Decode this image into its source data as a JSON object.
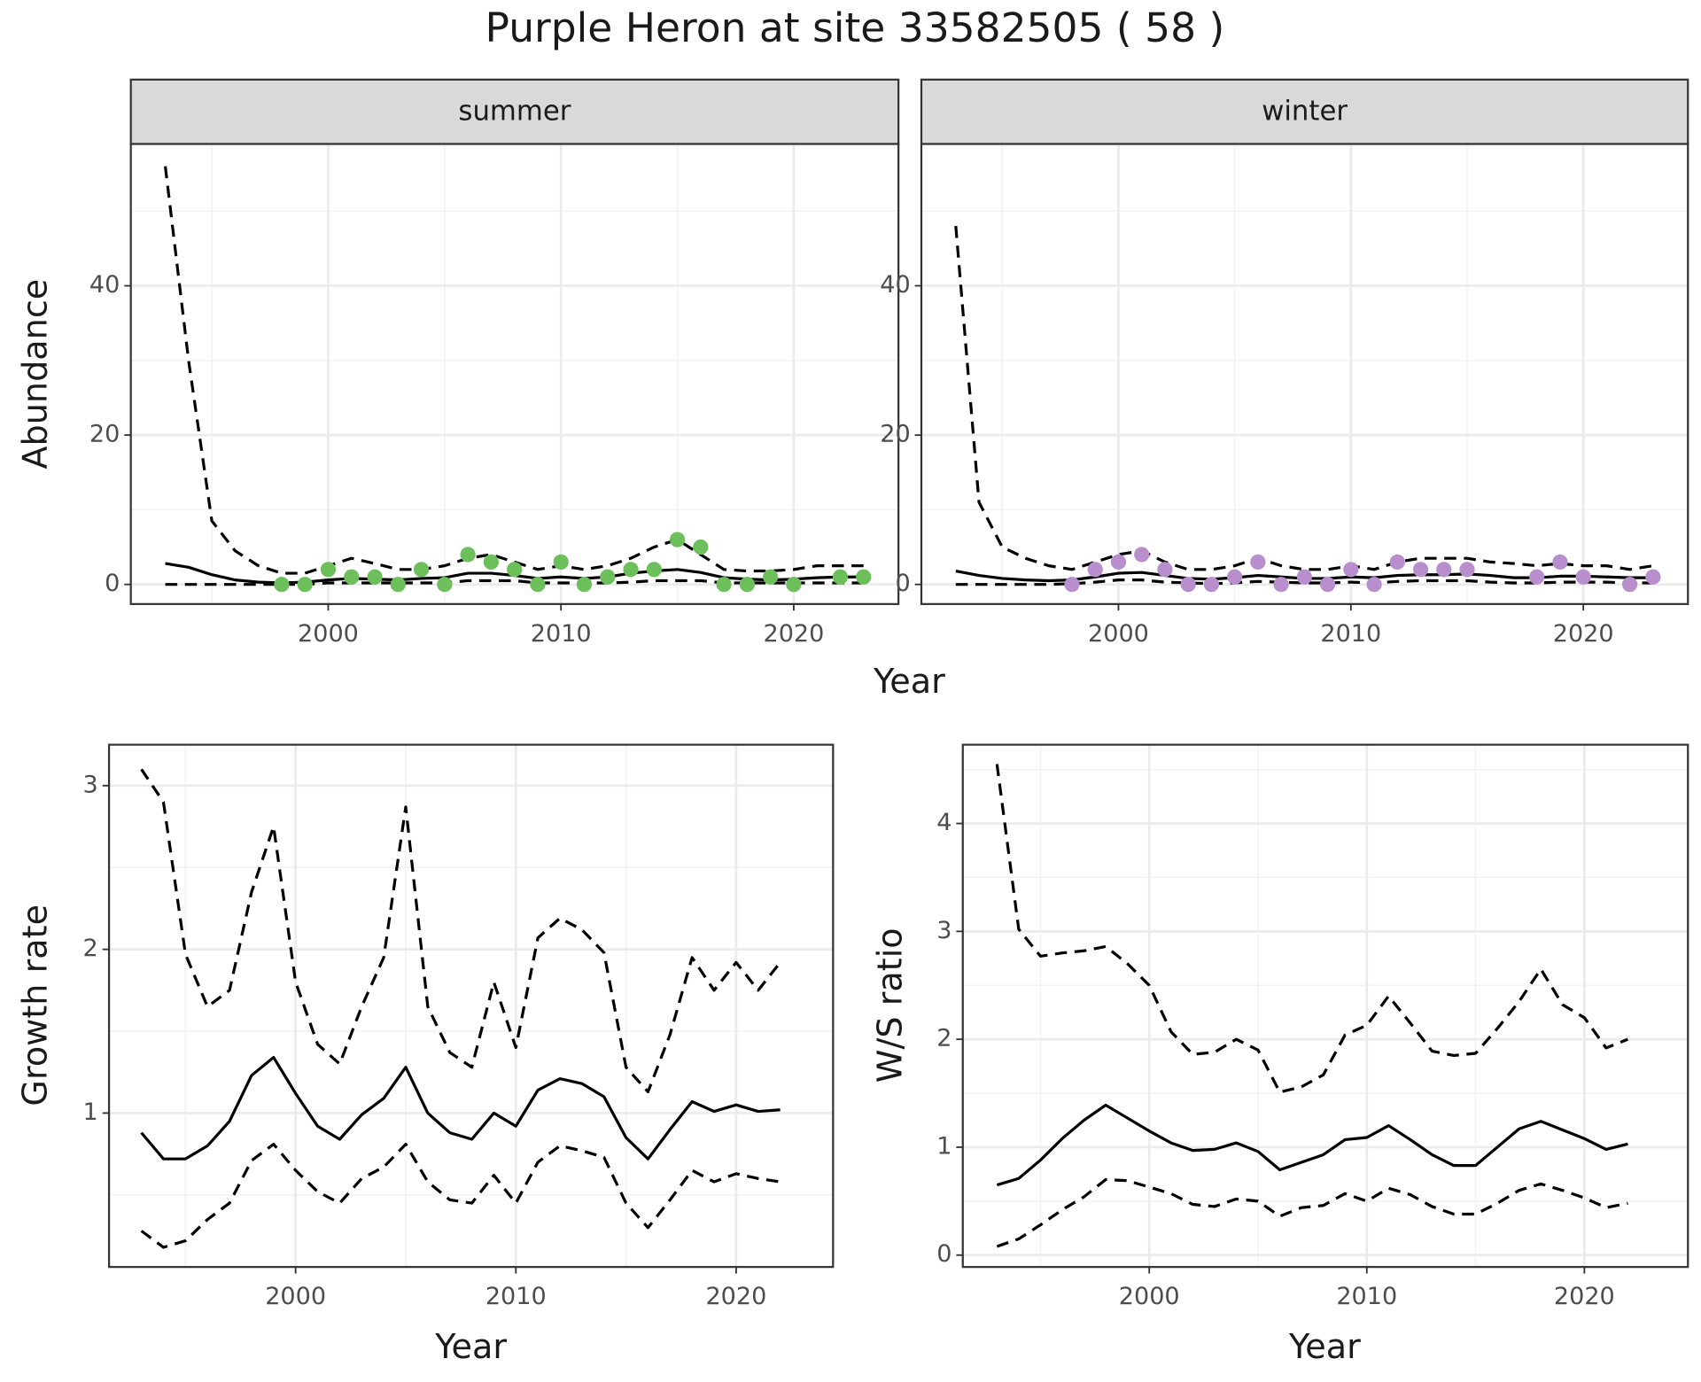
{
  "title": "Purple Heron at site 33582505 ( 58 )",
  "chart_data": [
    {
      "type": "line",
      "title": "summer",
      "x_label": "Year",
      "y_label": "Abundance",
      "x": [
        1993,
        1994,
        1995,
        1996,
        1997,
        1998,
        1999,
        2000,
        2001,
        2002,
        2003,
        2004,
        2005,
        2006,
        2007,
        2008,
        2009,
        2010,
        2011,
        2012,
        2013,
        2014,
        2015,
        2016,
        2017,
        2018,
        2019,
        2020,
        2021,
        2022,
        2023
      ],
      "xlim": [
        1991.52,
        2024.5
      ],
      "xticks": [
        2000,
        2010,
        2020
      ],
      "xminor": [
        1995,
        2005,
        2015
      ],
      "ylim": [
        -2.63,
        59.0
      ],
      "yticks": [
        0,
        20,
        40
      ],
      "yminor": [
        10,
        30,
        50
      ],
      "grid": true,
      "series": [
        {
          "style": "dashed",
          "color": "#000000",
          "values": [
            56,
            30,
            8.5,
            4.5,
            2.5,
            1.5,
            1.5,
            2.5,
            3.5,
            2.8,
            2,
            2,
            2.5,
            3.5,
            4,
            3,
            2,
            2.5,
            2,
            2.5,
            3.5,
            5,
            6,
            4,
            2,
            1.8,
            1.8,
            2,
            2.5,
            2.5,
            2.5
          ]
        },
        {
          "style": "solid",
          "color": "#000000",
          "values": [
            2.8,
            2.3,
            1.3,
            0.6,
            0.3,
            0.2,
            0.3,
            0.6,
            0.8,
            0.7,
            0.6,
            0.8,
            0.9,
            1.5,
            1.5,
            1.2,
            0.8,
            1,
            0.8,
            1,
            1.5,
            1.8,
            2,
            1.6,
            0.9,
            0.7,
            0.6,
            0.7,
            0.9,
            1,
            1
          ]
        },
        {
          "style": "dashed",
          "color": "#000000",
          "values": [
            0,
            0,
            0,
            0,
            0,
            0,
            0,
            0.2,
            0.2,
            0.2,
            0.2,
            0.2,
            0.2,
            0.5,
            0.5,
            0.5,
            0.2,
            0.2,
            0.2,
            0.2,
            0.3,
            0.5,
            0.5,
            0.5,
            0.2,
            0.2,
            0.2,
            0.2,
            0.2,
            0.2,
            0.2
          ]
        },
        {
          "style": "points",
          "color": "#6cbf5a",
          "values": [
            null,
            null,
            null,
            null,
            null,
            0,
            0,
            2,
            1,
            1,
            0,
            2,
            0,
            4,
            3,
            2,
            0,
            3,
            0,
            1,
            2,
            2,
            6,
            5,
            0,
            0,
            1,
            0,
            null,
            1,
            1
          ]
        }
      ]
    },
    {
      "type": "line",
      "title": "winter",
      "x": [
        1993,
        1994,
        1995,
        1996,
        1997,
        1998,
        1999,
        2000,
        2001,
        2002,
        2003,
        2004,
        2005,
        2006,
        2007,
        2008,
        2009,
        2010,
        2011,
        2012,
        2013,
        2014,
        2015,
        2016,
        2017,
        2018,
        2019,
        2020,
        2021,
        2022,
        2023
      ],
      "xlim": [
        1991.52,
        2024.5
      ],
      "xticks": [
        2000,
        2010,
        2020
      ],
      "xminor": [
        1995,
        2005,
        2015
      ],
      "ylim": [
        -2.63,
        59.0
      ],
      "yticks": [
        0,
        20,
        40
      ],
      "yminor": [
        10,
        30,
        50
      ],
      "grid": true,
      "series": [
        {
          "style": "dashed",
          "color": "#000000",
          "values": [
            48,
            11,
            5,
            3.5,
            2.5,
            2,
            3,
            4,
            4.5,
            3,
            2,
            2,
            2.5,
            3.5,
            2.5,
            2,
            2,
            2.5,
            2,
            3,
            3.5,
            3.5,
            3.5,
            3,
            2.8,
            2.5,
            2.8,
            2.5,
            2.5,
            2,
            2.5
          ]
        },
        {
          "style": "solid",
          "color": "#000000",
          "values": [
            1.8,
            1.2,
            0.8,
            0.6,
            0.5,
            0.6,
            1,
            1.5,
            1.6,
            1.2,
            0.8,
            0.7,
            0.9,
            1.2,
            1,
            0.8,
            0.8,
            1,
            0.9,
            1.2,
            1.3,
            1.3,
            1.4,
            1.2,
            0.9,
            0.9,
            1.1,
            1.1,
            1,
            0.9,
            0.9
          ]
        },
        {
          "style": "dashed",
          "color": "#000000",
          "values": [
            0,
            0,
            0,
            0,
            0,
            0.1,
            0.3,
            0.6,
            0.6,
            0.3,
            0.2,
            0.1,
            0.2,
            0.4,
            0.3,
            0.2,
            0.2,
            0.3,
            0.2,
            0.4,
            0.5,
            0.5,
            0.5,
            0.3,
            0.2,
            0.2,
            0.3,
            0.3,
            0.3,
            0.2,
            0.2
          ]
        },
        {
          "style": "points",
          "color": "#b88fcc",
          "values": [
            null,
            null,
            null,
            null,
            null,
            0,
            2,
            3,
            4,
            2,
            0,
            0,
            1,
            3,
            0,
            1,
            0,
            2,
            0,
            3,
            2,
            2,
            2,
            null,
            null,
            1,
            3,
            1,
            null,
            0,
            1
          ]
        }
      ]
    },
    {
      "type": "line",
      "x_label": "Year",
      "y_label": "Growth rate",
      "x": [
        1993,
        1994,
        1995,
        1996,
        1997,
        1998,
        1999,
        2000,
        2001,
        2002,
        2003,
        2004,
        2005,
        2006,
        2007,
        2008,
        2009,
        2010,
        2011,
        2012,
        2013,
        2014,
        2015,
        2016,
        2017,
        2018,
        2019,
        2020,
        2021,
        2022
      ],
      "xlim": [
        1991.53,
        2024.4
      ],
      "xticks": [
        2000,
        2010,
        2020
      ],
      "xminor": [
        1995,
        2005,
        2015
      ],
      "ylim": [
        0.06,
        3.25
      ],
      "yticks": [
        1,
        2,
        3
      ],
      "yminor": [
        0.5,
        1.5,
        2.5
      ],
      "grid": true,
      "series": [
        {
          "style": "dashed",
          "color": "#000000",
          "values": [
            3.1,
            2.9,
            1.97,
            1.65,
            1.75,
            2.35,
            2.75,
            1.8,
            1.42,
            1.3,
            1.65,
            1.95,
            2.87,
            1.65,
            1.37,
            1.28,
            1.8,
            1.4,
            2.07,
            2.19,
            2.12,
            1.98,
            1.28,
            1.13,
            1.48,
            1.95,
            1.75,
            1.92,
            1.75,
            1.92
          ]
        },
        {
          "style": "solid",
          "color": "#000000",
          "values": [
            0.88,
            0.72,
            0.72,
            0.8,
            0.95,
            1.23,
            1.34,
            1.12,
            0.92,
            0.84,
            0.99,
            1.09,
            1.28,
            1.0,
            0.88,
            0.84,
            1.0,
            0.92,
            1.14,
            1.21,
            1.18,
            1.1,
            0.85,
            0.72,
            0.9,
            1.07,
            1.01,
            1.05,
            1.01,
            1.02
          ]
        },
        {
          "style": "dashed",
          "color": "#000000",
          "values": [
            0.28,
            0.18,
            0.22,
            0.35,
            0.45,
            0.71,
            0.81,
            0.65,
            0.52,
            0.45,
            0.6,
            0.67,
            0.81,
            0.58,
            0.47,
            0.45,
            0.62,
            0.45,
            0.7,
            0.8,
            0.77,
            0.73,
            0.45,
            0.3,
            0.47,
            0.65,
            0.58,
            0.63,
            0.6,
            0.58
          ]
        }
      ]
    },
    {
      "type": "line",
      "x_label": "Year",
      "y_label": "W/S ratio",
      "x": [
        1993,
        1994,
        1995,
        1996,
        1997,
        1998,
        1999,
        2000,
        2001,
        2002,
        2003,
        2004,
        2005,
        2006,
        2007,
        2008,
        2009,
        2010,
        2011,
        2012,
        2013,
        2014,
        2015,
        2016,
        2017,
        2018,
        2019,
        2020,
        2021,
        2022
      ],
      "xlim": [
        1991.43,
        2024.76
      ],
      "xticks": [
        2000,
        2010,
        2020
      ],
      "xminor": [
        1995,
        2005,
        2015
      ],
      "ylim": [
        -0.11,
        4.73
      ],
      "yticks": [
        0,
        1,
        2,
        3,
        4
      ],
      "yminor": [
        0.5,
        1.5,
        2.5,
        3.5,
        4.5
      ],
      "grid": true,
      "series": [
        {
          "style": "dashed",
          "color": "#000000",
          "values": [
            4.55,
            3.02,
            2.77,
            2.8,
            2.82,
            2.86,
            2.7,
            2.5,
            2.07,
            1.86,
            1.88,
            2.0,
            1.9,
            1.51,
            1.56,
            1.67,
            2.04,
            2.13,
            2.4,
            2.15,
            1.89,
            1.85,
            1.87,
            2.1,
            2.35,
            2.65,
            2.32,
            2.2,
            1.92,
            2.0
          ]
        },
        {
          "style": "solid",
          "color": "#000000",
          "values": [
            0.65,
            0.71,
            0.88,
            1.08,
            1.25,
            1.39,
            1.27,
            1.15,
            1.04,
            0.97,
            0.98,
            1.04,
            0.96,
            0.79,
            0.86,
            0.93,
            1.07,
            1.09,
            1.2,
            1.07,
            0.93,
            0.83,
            0.83,
            1.0,
            1.17,
            1.24,
            1.16,
            1.08,
            0.98,
            1.03
          ]
        },
        {
          "style": "dashed",
          "color": "#000000",
          "values": [
            0.08,
            0.15,
            0.28,
            0.42,
            0.54,
            0.7,
            0.69,
            0.63,
            0.57,
            0.47,
            0.45,
            0.52,
            0.5,
            0.36,
            0.44,
            0.46,
            0.57,
            0.5,
            0.62,
            0.56,
            0.45,
            0.38,
            0.38,
            0.48,
            0.6,
            0.66,
            0.6,
            0.53,
            0.44,
            0.48
          ]
        }
      ]
    }
  ]
}
